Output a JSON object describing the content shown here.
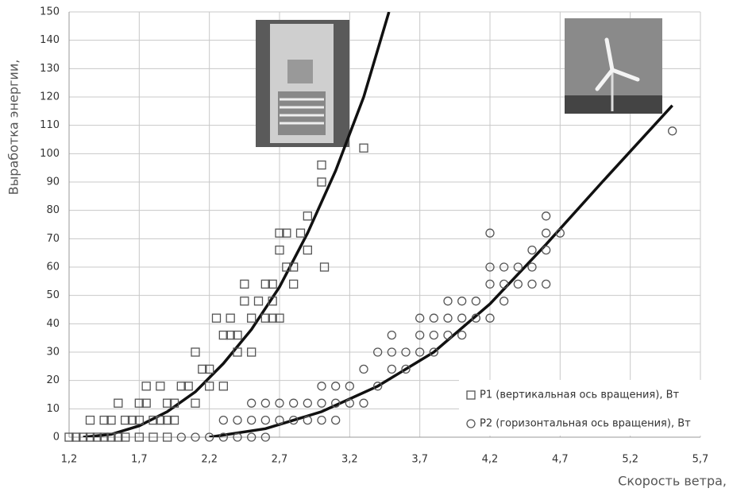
{
  "chart_data": {
    "type": "scatter",
    "x_label": "Скорость ветра,",
    "y_label": "Выработка энергии,",
    "xlim": [
      1.2,
      5.7
    ],
    "ylim": [
      0,
      150
    ],
    "xticks": [
      {
        "value": 1.2,
        "label": "1,2"
      },
      {
        "value": 1.7,
        "label": "1,7"
      },
      {
        "value": 2.2,
        "label": "2,2"
      },
      {
        "value": 2.7,
        "label": "2,7"
      },
      {
        "value": 3.2,
        "label": "3,2"
      },
      {
        "value": 3.7,
        "label": "3,7"
      },
      {
        "value": 4.2,
        "label": "4,2"
      },
      {
        "value": 4.7,
        "label": "4,7"
      },
      {
        "value": 5.2,
        "label": "5,2"
      },
      {
        "value": 5.7,
        "label": "5,7"
      }
    ],
    "yticks": [
      0,
      10,
      20,
      30,
      40,
      50,
      60,
      70,
      80,
      90,
      100,
      110,
      120,
      130,
      140,
      150
    ],
    "grid": true,
    "legend": "bottom-right",
    "series": [
      {
        "name": "P1 (вертикальная ось вращения), Вт",
        "marker": "square",
        "color": "#555555",
        "x": [
          1.2,
          1.25,
          1.3,
          1.35,
          1.4,
          1.45,
          1.5,
          1.55,
          1.6,
          1.7,
          1.8,
          1.9,
          1.35,
          1.45,
          1.5,
          1.55,
          1.6,
          1.65,
          1.7,
          1.75,
          1.8,
          1.85,
          1.9,
          1.95,
          1.7,
          1.75,
          1.85,
          1.9,
          1.95,
          2.0,
          2.05,
          2.1,
          2.1,
          2.15,
          2.2,
          2.2,
          2.25,
          2.3,
          2.3,
          2.35,
          2.35,
          2.4,
          2.4,
          2.45,
          2.45,
          2.5,
          2.5,
          2.55,
          2.6,
          2.6,
          2.65,
          2.65,
          2.7,
          2.7,
          2.7,
          2.75,
          2.8,
          2.8,
          2.85,
          2.9,
          2.9,
          3.0,
          3.0,
          3.02,
          3.3,
          2.75,
          2.65
        ],
        "values": [
          0,
          0,
          0,
          0,
          0,
          0,
          0,
          0,
          0,
          0,
          0,
          0,
          6,
          6,
          6,
          12,
          6,
          6,
          6,
          12,
          6,
          6,
          6,
          6,
          12,
          18,
          18,
          12,
          12,
          18,
          18,
          12,
          30,
          24,
          18,
          24,
          42,
          18,
          36,
          36,
          42,
          30,
          36,
          48,
          54,
          30,
          42,
          48,
          42,
          54,
          48,
          54,
          42,
          66,
          72,
          72,
          54,
          60,
          72,
          66,
          78,
          90,
          96,
          60,
          102,
          60,
          42
        ]
      },
      {
        "name": "P2 (горизонтальная ось вращения), Вт",
        "marker": "circle",
        "color": "#555555",
        "x": [
          2.0,
          2.1,
          2.2,
          2.3,
          2.4,
          2.5,
          2.6,
          2.3,
          2.4,
          2.5,
          2.6,
          2.7,
          2.8,
          2.9,
          3.0,
          3.1,
          2.5,
          2.6,
          2.7,
          2.8,
          2.9,
          3.0,
          3.1,
          3.2,
          3.3,
          3.0,
          3.1,
          3.2,
          3.3,
          3.4,
          3.4,
          3.5,
          3.5,
          3.5,
          3.6,
          3.6,
          3.7,
          3.7,
          3.7,
          3.8,
          3.8,
          3.8,
          3.9,
          3.9,
          3.9,
          4.0,
          4.0,
          4.0,
          4.1,
          4.1,
          4.2,
          4.2,
          4.2,
          4.2,
          4.3,
          4.3,
          4.3,
          4.4,
          4.4,
          4.5,
          4.5,
          4.5,
          4.6,
          4.6,
          4.6,
          4.6,
          4.7,
          5.5
        ],
        "values": [
          0,
          0,
          0,
          0,
          0,
          0,
          0,
          6,
          6,
          6,
          6,
          6,
          6,
          6,
          6,
          6,
          12,
          12,
          12,
          12,
          12,
          12,
          12,
          12,
          12,
          18,
          18,
          18,
          24,
          18,
          30,
          24,
          30,
          36,
          24,
          30,
          30,
          36,
          42,
          30,
          36,
          42,
          36,
          42,
          48,
          36,
          42,
          48,
          42,
          48,
          42,
          54,
          60,
          72,
          48,
          54,
          60,
          54,
          60,
          54,
          60,
          66,
          54,
          66,
          72,
          78,
          72,
          108
        ]
      }
    ],
    "trendlines": [
      {
        "color": "#111111",
        "x": [
          1.3,
          1.5,
          1.7,
          1.9,
          2.1,
          2.3,
          2.5,
          2.7,
          2.9,
          3.1,
          3.3,
          3.48
        ],
        "values": [
          0,
          1,
          4,
          9,
          16,
          26,
          38,
          53,
          72,
          94,
          120,
          150
        ]
      },
      {
        "color": "#111111",
        "x": [
          2.2,
          2.6,
          3.0,
          3.4,
          3.8,
          4.2,
          4.6,
          5.0,
          5.5
        ],
        "values": [
          0,
          3,
          9,
          18,
          30,
          47,
          68,
          90,
          117
        ]
      }
    ]
  }
}
